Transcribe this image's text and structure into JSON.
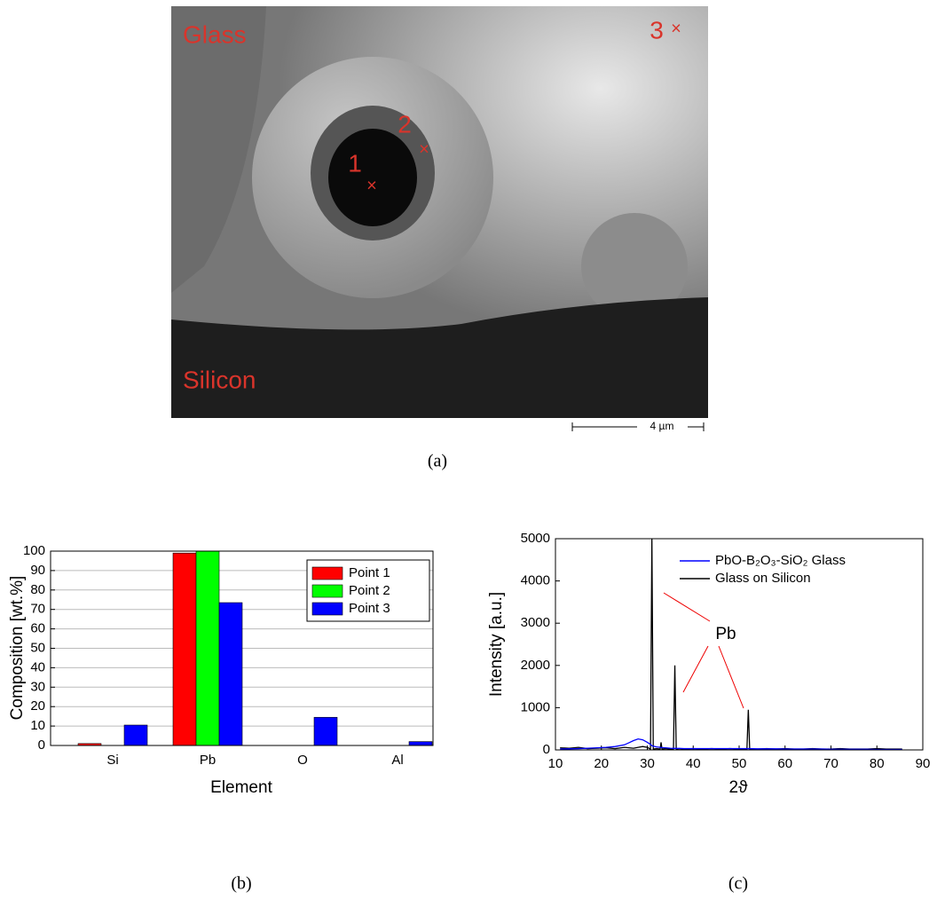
{
  "image": {
    "labels": {
      "glass": "Glass",
      "silicon": "Silicon",
      "p1": "1",
      "p2": "2",
      "p3": "3"
    },
    "scale_bar": "4 µm",
    "caption": "(a)"
  },
  "chart_data": [
    {
      "type": "bar",
      "caption": "(b)",
      "x_label": "Element",
      "y_label": "Composition [wt.%]",
      "categories": [
        "Si",
        "Pb",
        "O",
        "Al"
      ],
      "series": [
        {
          "name": "Point 1",
          "color": "#ff0000",
          "values": [
            1,
            99,
            0,
            0
          ]
        },
        {
          "name": "Point 2",
          "color": "#00ff00",
          "values": [
            0,
            100,
            0,
            0
          ]
        },
        {
          "name": "Point 3",
          "color": "#0000ff",
          "values": [
            10.5,
            73.5,
            14.5,
            2
          ]
        }
      ],
      "ylim": [
        0,
        100
      ],
      "yticks": [
        0,
        10,
        20,
        30,
        40,
        50,
        60,
        70,
        80,
        90,
        100
      ],
      "grid": true,
      "legend": "top-right"
    },
    {
      "type": "line",
      "caption": "(c)",
      "x_label": "2ϑ",
      "y_label": "Intensity [a.u.]",
      "annotation": "Pb",
      "x": [
        11,
        13,
        15,
        17,
        19,
        21,
        23,
        25,
        26,
        27,
        28,
        29,
        30,
        30.7,
        31,
        31.3,
        32,
        32.8,
        33,
        33.2,
        34,
        35,
        35.7,
        36,
        36.3,
        37,
        38,
        40,
        42,
        44,
        46,
        48,
        50,
        51.7,
        52,
        52.3,
        54,
        56,
        58,
        60,
        62,
        64,
        66,
        68,
        70,
        72,
        74,
        76,
        78,
        80,
        82,
        84,
        85.5
      ],
      "series": [
        {
          "name": "PbO-B₂O₃-SiO₂ Glass",
          "color": "#0000ff",
          "values": [
            20,
            25,
            30,
            40,
            50,
            60,
            80,
            120,
            170,
            220,
            260,
            240,
            180,
            130,
            100,
            90,
            70,
            60,
            55,
            55,
            50,
            40,
            35,
            35,
            35,
            35,
            30,
            30,
            30,
            30,
            30,
            30,
            30,
            30,
            30,
            30,
            25,
            25,
            25,
            20,
            20,
            20,
            20,
            20,
            15,
            15,
            15,
            15,
            15,
            10,
            10,
            10,
            10
          ]
        },
        {
          "name": "Glass on Silicon",
          "color": "#000000",
          "values": [
            50,
            40,
            60,
            30,
            40,
            50,
            30,
            60,
            50,
            40,
            60,
            80,
            60,
            20,
            5000,
            20,
            30,
            20,
            180,
            20,
            30,
            20,
            20,
            2000,
            20,
            30,
            20,
            30,
            20,
            30,
            20,
            30,
            20,
            20,
            950,
            20,
            20,
            30,
            20,
            30,
            20,
            20,
            30,
            20,
            20,
            30,
            20,
            20,
            20,
            30,
            20,
            20,
            20
          ]
        }
      ],
      "xlim": [
        10,
        90
      ],
      "xticks": [
        10,
        20,
        30,
        40,
        50,
        60,
        70,
        80,
        90
      ],
      "ylim": [
        0,
        5000
      ],
      "yticks": [
        0,
        1000,
        2000,
        3000,
        4000,
        5000
      ],
      "grid": false,
      "legend": "top-right"
    }
  ]
}
